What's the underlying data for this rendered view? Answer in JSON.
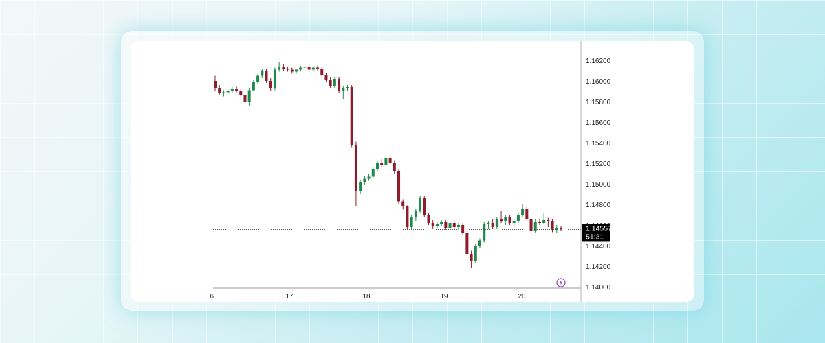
{
  "chart_data": {
    "type": "candlestick",
    "title": "",
    "x_tick_labels": [
      "6",
      "17",
      "18",
      "19",
      "20"
    ],
    "y_tick_labels": [
      "1.16200",
      "1.16000",
      "1.15800",
      "1.15600",
      "1.15400",
      "1.15200",
      "1.15000",
      "1.14800",
      "1.14600",
      "1.14400",
      "1.14200",
      "1.14000"
    ],
    "ylim": [
      1.14,
      1.162
    ],
    "grid": false,
    "last_price": "1.14557",
    "countdown": "51:31",
    "colors": {
      "up": "#1e8a4c",
      "down": "#8e1c2b",
      "price_tag": "#000000"
    },
    "candles": [
      [
        1.16,
        1.1605,
        1.159,
        1.1593
      ],
      [
        1.1593,
        1.1596,
        1.1586,
        1.1588
      ],
      [
        1.1588,
        1.1591,
        1.1585,
        1.1589
      ],
      [
        1.1589,
        1.1592,
        1.1586,
        1.159
      ],
      [
        1.159,
        1.1594,
        1.1588,
        1.1592
      ],
      [
        1.1592,
        1.1595,
        1.1589,
        1.159
      ],
      [
        1.159,
        1.1592,
        1.1585,
        1.1586
      ],
      [
        1.1586,
        1.1588,
        1.1578,
        1.158
      ],
      [
        1.158,
        1.1593,
        1.1576,
        1.1591
      ],
      [
        1.1591,
        1.1601,
        1.159,
        1.1599
      ],
      [
        1.1599,
        1.1607,
        1.1597,
        1.1605
      ],
      [
        1.1605,
        1.1612,
        1.1603,
        1.161
      ],
      [
        1.161,
        1.1612,
        1.1598,
        1.16
      ],
      [
        1.16,
        1.1603,
        1.159,
        1.1593
      ],
      [
        1.1593,
        1.1613,
        1.1591,
        1.1611
      ],
      [
        1.1611,
        1.1618,
        1.1609,
        1.1614
      ],
      [
        1.1614,
        1.1616,
        1.161,
        1.1612
      ],
      [
        1.1612,
        1.1614,
        1.1609,
        1.1611
      ],
      [
        1.1611,
        1.1613,
        1.1607,
        1.1609
      ],
      [
        1.1609,
        1.1612,
        1.1607,
        1.1611
      ],
      [
        1.1611,
        1.1615,
        1.1609,
        1.1613
      ],
      [
        1.1613,
        1.1616,
        1.1611,
        1.1614
      ],
      [
        1.1614,
        1.1616,
        1.1609,
        1.1611
      ],
      [
        1.1611,
        1.1614,
        1.1609,
        1.1613
      ],
      [
        1.1613,
        1.1615,
        1.161,
        1.1612
      ],
      [
        1.1612,
        1.1614,
        1.1604,
        1.1606
      ],
      [
        1.1606,
        1.1608,
        1.1599,
        1.1601
      ],
      [
        1.1601,
        1.1604,
        1.1593,
        1.1595
      ],
      [
        1.1595,
        1.1604,
        1.1593,
        1.1602
      ],
      [
        1.1602,
        1.1604,
        1.1588,
        1.159
      ],
      [
        1.159,
        1.1595,
        1.1582,
        1.1593
      ],
      [
        1.1593,
        1.1596,
        1.159,
        1.1594
      ],
      [
        1.1594,
        1.1596,
        1.1535,
        1.1538
      ],
      [
        1.1538,
        1.1541,
        1.1478,
        1.1493
      ],
      [
        1.1493,
        1.1504,
        1.149,
        1.1502
      ],
      [
        1.1502,
        1.1508,
        1.1499,
        1.1505
      ],
      [
        1.1505,
        1.151,
        1.1503,
        1.1507
      ],
      [
        1.1507,
        1.1516,
        1.1505,
        1.1514
      ],
      [
        1.1514,
        1.1522,
        1.1512,
        1.152
      ],
      [
        1.152,
        1.1524,
        1.1516,
        1.1518
      ],
      [
        1.1518,
        1.1527,
        1.1516,
        1.1525
      ],
      [
        1.1525,
        1.1529,
        1.1518,
        1.152
      ],
      [
        1.152,
        1.1523,
        1.151,
        1.1512
      ],
      [
        1.1512,
        1.1514,
        1.148,
        1.1483
      ],
      [
        1.1483,
        1.1485,
        1.1475,
        1.1478
      ],
      [
        1.1478,
        1.1479,
        1.1455,
        1.1458
      ],
      [
        1.1458,
        1.147,
        1.1455,
        1.1468
      ],
      [
        1.1468,
        1.1476,
        1.1464,
        1.1474
      ],
      [
        1.1474,
        1.1488,
        1.1472,
        1.1486
      ],
      [
        1.1486,
        1.1488,
        1.1468,
        1.147
      ],
      [
        1.147,
        1.1472,
        1.146,
        1.1462
      ],
      [
        1.1462,
        1.1465,
        1.1456,
        1.1459
      ],
      [
        1.1459,
        1.1463,
        1.1457,
        1.1461
      ],
      [
        1.1461,
        1.1465,
        1.1459,
        1.1463
      ],
      [
        1.1463,
        1.1465,
        1.1455,
        1.1457
      ],
      [
        1.1457,
        1.1464,
        1.1455,
        1.1462
      ],
      [
        1.1462,
        1.1464,
        1.1456,
        1.1458
      ],
      [
        1.1458,
        1.1462,
        1.1455,
        1.146
      ],
      [
        1.146,
        1.1462,
        1.145,
        1.1452
      ],
      [
        1.1452,
        1.1454,
        1.143,
        1.1432
      ],
      [
        1.1432,
        1.1435,
        1.1418,
        1.1425
      ],
      [
        1.1425,
        1.1442,
        1.1423,
        1.144
      ],
      [
        1.144,
        1.1447,
        1.1438,
        1.1445
      ],
      [
        1.1445,
        1.1463,
        1.1443,
        1.1461
      ],
      [
        1.1461,
        1.1464,
        1.1456,
        1.1462
      ],
      [
        1.1462,
        1.1466,
        1.1456,
        1.1458
      ],
      [
        1.1458,
        1.1468,
        1.1456,
        1.1466
      ],
      [
        1.1466,
        1.1474,
        1.1462,
        1.1464
      ],
      [
        1.1464,
        1.147,
        1.146,
        1.1468
      ],
      [
        1.1468,
        1.147,
        1.146,
        1.1462
      ],
      [
        1.1462,
        1.1466,
        1.1458,
        1.1464
      ],
      [
        1.1464,
        1.1472,
        1.1462,
        1.147
      ],
      [
        1.147,
        1.148,
        1.1468,
        1.1476
      ],
      [
        1.1476,
        1.1478,
        1.1464,
        1.1466
      ],
      [
        1.1466,
        1.1468,
        1.1452,
        1.1454
      ],
      [
        1.1454,
        1.1466,
        1.1452,
        1.1463
      ],
      [
        1.1463,
        1.1466,
        1.146,
        1.1462
      ],
      [
        1.1462,
        1.1472,
        1.1461,
        1.1465
      ],
      [
        1.1465,
        1.1467,
        1.1458,
        1.1464
      ],
      [
        1.1464,
        1.1466,
        1.1453,
        1.1455
      ],
      [
        1.1455,
        1.146,
        1.1452,
        1.1457
      ],
      [
        1.1457,
        1.1459,
        1.1454,
        1.14557
      ]
    ]
  }
}
